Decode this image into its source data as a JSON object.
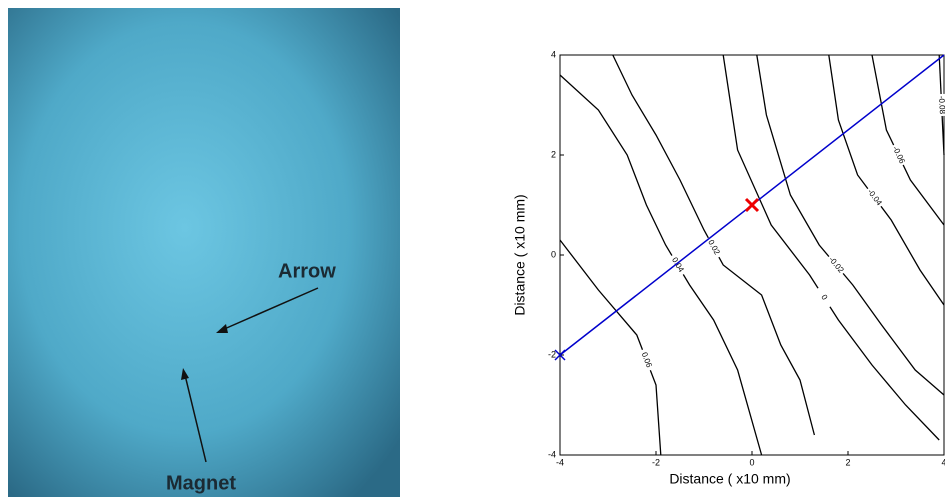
{
  "image": {
    "annotations": [
      "Arrow",
      "Magnet"
    ]
  },
  "chart_data": {
    "type": "contour",
    "xlabel": "Distance ( x10 mm)",
    "ylabel": "Distance ( x10 mm)",
    "xlim": [
      -4,
      4
    ],
    "ylim": [
      -4,
      4
    ],
    "xticks": [
      -4,
      -2,
      0,
      2,
      4
    ],
    "yticks": [
      -4,
      -2,
      0,
      2,
      4
    ],
    "contours": [
      {
        "level": 0.06,
        "x": [
          -4,
          -3.2,
          -2.4,
          -2.0,
          -1.9
        ],
        "y": [
          0.3,
          -0.7,
          -1.6,
          -2.6,
          -4
        ]
      },
      {
        "level": 0.04,
        "x": [
          -4,
          -3.2,
          -2.6,
          -2.2,
          -1.8,
          -1.3,
          -0.8,
          -0.3,
          0.2
        ],
        "y": [
          3.6,
          2.9,
          2.0,
          1.0,
          0.2,
          -0.6,
          -1.3,
          -2.3,
          -4
        ]
      },
      {
        "level": 0.02,
        "x": [
          -2.9,
          -2.5,
          -2.0,
          -1.5,
          -1.0,
          -0.6,
          0.2,
          0.6,
          1.0,
          1.3
        ],
        "y": [
          4,
          3.2,
          2.4,
          1.5,
          0.5,
          -0.2,
          -0.8,
          -1.8,
          -2.5,
          -3.6
        ]
      },
      {
        "level": 0,
        "x": [
          -0.6,
          -0.3,
          0.4,
          1.2,
          1.8,
          2.5,
          3.2,
          3.9
        ],
        "y": [
          4,
          2.1,
          0.6,
          -0.4,
          -1.3,
          -2.2,
          -3.0,
          -3.7
        ]
      },
      {
        "level": -0.02,
        "x": [
          0.1,
          0.3,
          0.8,
          1.4,
          2.1,
          2.7,
          3.4,
          4
        ],
        "y": [
          4,
          2.8,
          1.2,
          0.2,
          -0.6,
          -1.4,
          -2.3,
          -2.8
        ]
      },
      {
        "level": -0.04,
        "x": [
          1.6,
          1.8,
          2.2,
          2.9,
          3.5,
          4
        ],
        "y": [
          4,
          2.7,
          1.6,
          0.7,
          -0.3,
          -1
        ]
      },
      {
        "level": -0.06,
        "x": [
          2.5,
          2.8,
          3.3,
          4
        ],
        "y": [
          4,
          2.5,
          1.5,
          0.6
        ]
      },
      {
        "level": -0.08,
        "x": [
          3.9,
          4
        ],
        "y": [
          4,
          2
        ]
      }
    ],
    "path": {
      "color": "#0000cc",
      "x": [
        -4,
        4
      ],
      "y": [
        -2,
        4
      ]
    },
    "marker": {
      "color": "#ee0000",
      "x": 0,
      "y": 1
    }
  }
}
